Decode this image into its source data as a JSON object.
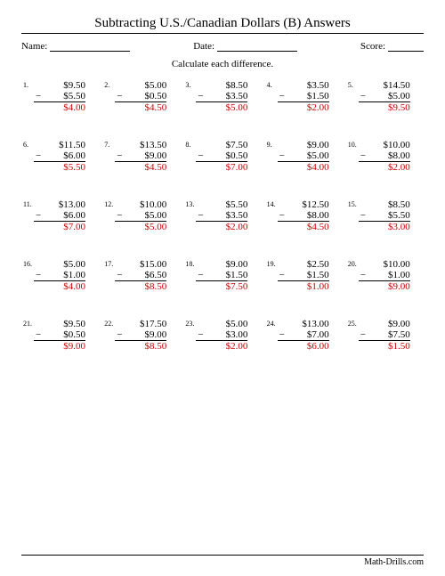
{
  "title": "Subtracting U.S./Canadian Dollars (B) Answers",
  "labels": {
    "name": "Name:",
    "date": "Date:",
    "score": "Score:"
  },
  "instruction": "Calculate each difference.",
  "minus_sign": "−",
  "answer_color": "#cc0000",
  "problems": [
    {
      "n": "1.",
      "a": "$9.50",
      "b": "$5.50",
      "ans": "$4.00"
    },
    {
      "n": "2.",
      "a": "$5.00",
      "b": "$0.50",
      "ans": "$4.50"
    },
    {
      "n": "3.",
      "a": "$8.50",
      "b": "$3.50",
      "ans": "$5.00"
    },
    {
      "n": "4.",
      "a": "$3.50",
      "b": "$1.50",
      "ans": "$2.00"
    },
    {
      "n": "5.",
      "a": "$14.50",
      "b": "$5.00",
      "ans": "$9.50"
    },
    {
      "n": "6.",
      "a": "$11.50",
      "b": "$6.00",
      "ans": "$5.50"
    },
    {
      "n": "7.",
      "a": "$13.50",
      "b": "$9.00",
      "ans": "$4.50"
    },
    {
      "n": "8.",
      "a": "$7.50",
      "b": "$0.50",
      "ans": "$7.00"
    },
    {
      "n": "9.",
      "a": "$9.00",
      "b": "$5.00",
      "ans": "$4.00"
    },
    {
      "n": "10.",
      "a": "$10.00",
      "b": "$8.00",
      "ans": "$2.00"
    },
    {
      "n": "11.",
      "a": "$13.00",
      "b": "$6.00",
      "ans": "$7.00"
    },
    {
      "n": "12.",
      "a": "$10.00",
      "b": "$5.00",
      "ans": "$5.00"
    },
    {
      "n": "13.",
      "a": "$5.50",
      "b": "$3.50",
      "ans": "$2.00"
    },
    {
      "n": "14.",
      "a": "$12.50",
      "b": "$8.00",
      "ans": "$4.50"
    },
    {
      "n": "15.",
      "a": "$8.50",
      "b": "$5.50",
      "ans": "$3.00"
    },
    {
      "n": "16.",
      "a": "$5.00",
      "b": "$1.00",
      "ans": "$4.00"
    },
    {
      "n": "17.",
      "a": "$15.00",
      "b": "$6.50",
      "ans": "$8.50"
    },
    {
      "n": "18.",
      "a": "$9.00",
      "b": "$1.50",
      "ans": "$7.50"
    },
    {
      "n": "19.",
      "a": "$2.50",
      "b": "$1.50",
      "ans": "$1.00"
    },
    {
      "n": "20.",
      "a": "$10.00",
      "b": "$1.00",
      "ans": "$9.00"
    },
    {
      "n": "21.",
      "a": "$9.50",
      "b": "$0.50",
      "ans": "$9.00"
    },
    {
      "n": "22.",
      "a": "$17.50",
      "b": "$9.00",
      "ans": "$8.50"
    },
    {
      "n": "23.",
      "a": "$5.00",
      "b": "$3.00",
      "ans": "$2.00"
    },
    {
      "n": "24.",
      "a": "$13.00",
      "b": "$7.00",
      "ans": "$6.00"
    },
    {
      "n": "25.",
      "a": "$9.00",
      "b": "$7.50",
      "ans": "$1.50"
    }
  ],
  "footer": "Math-Drills.com"
}
